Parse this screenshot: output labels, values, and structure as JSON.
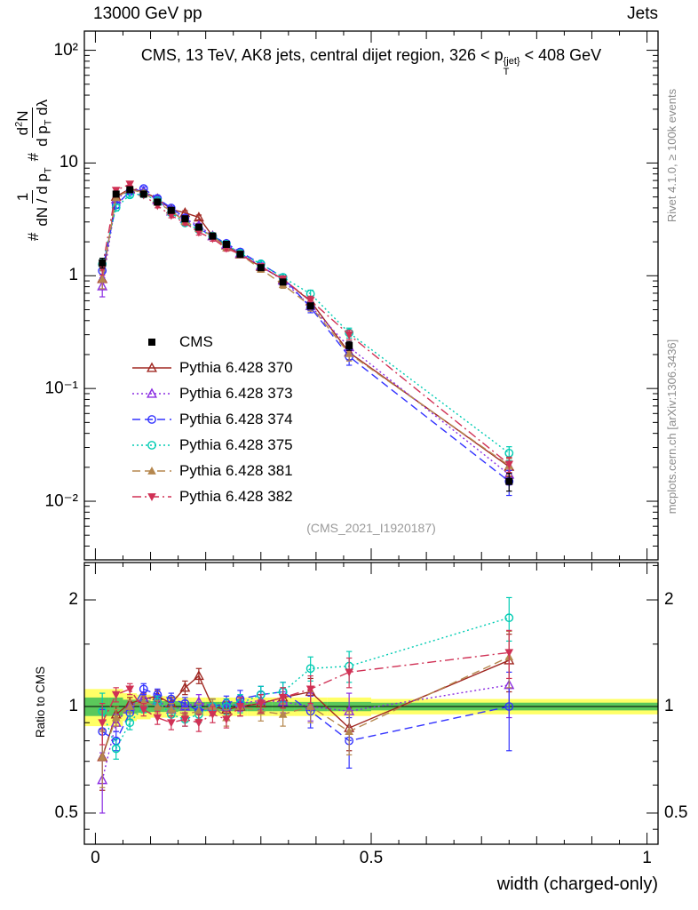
{
  "header": {
    "left": "13000 GeV pp",
    "right": "Jets"
  },
  "title": {
    "pre": "CMS, 13 TeV, AK8 jets, central dijet region, 326 < p",
    "sup": "{jet}",
    "sub": "T",
    "post": " < 408 GeV"
  },
  "side_notes": {
    "top_right": "Rivet 4.1.0, ≥ 100k events",
    "bottom_right": "mcplots.cern.ch [arXiv:1306.3436]"
  },
  "watermark": "(CMS_2021_I1920187)",
  "axes": {
    "x_label": "width (charged-only)",
    "ratio_label": "Ratio to CMS",
    "x_ticks": [
      {
        "v": 0,
        "label": "0"
      },
      {
        "v": 0.5,
        "label": "0.5"
      },
      {
        "v": 1,
        "label": "1"
      }
    ],
    "y_main_ticks": [
      {
        "v": 100,
        "label": "10²"
      },
      {
        "v": 10,
        "label": "10"
      },
      {
        "v": 1,
        "label": "1"
      },
      {
        "v": 0.1,
        "label": "10⁻¹"
      },
      {
        "v": 0.01,
        "label": "10⁻²"
      }
    ],
    "y_ratio_ticks": [
      {
        "v": 2,
        "label": "2"
      },
      {
        "v": 1,
        "label": "1"
      },
      {
        "v": 0.5,
        "label": "0.5"
      }
    ],
    "y_main_label": {
      "hash1": "#",
      "f1num": "1",
      "f1den_a": "dN / d p",
      "f1den_sub": "T",
      "hash2": "#",
      "f2num_a": "d",
      "f2num_sup": "2",
      "f2num_b": "N",
      "f2den_a": "d p",
      "f2den_sub": "T",
      "f2den_b": " dλ"
    }
  },
  "chart_data": {
    "type": "line",
    "title": "CMS, 13 TeV, AK8 jets, central dijet region, 326 < p_T^{jet} < 408 GeV",
    "xlabel": "width (charged-only)",
    "ylabel": "# 1/(dN/dp_T) # d2N/(dp_T dlambda)",
    "ylabel_ratio": "Ratio to CMS",
    "x_range": [
      -0.02,
      1.02
    ],
    "y_main_log_range": [
      -2.52,
      2.17
    ],
    "y_ratio_log_range": [
      -0.389,
      0.4065
    ],
    "x": [
      0.0125,
      0.0375,
      0.0625,
      0.0875,
      0.1125,
      0.1375,
      0.1625,
      0.1875,
      0.2125,
      0.2375,
      0.2625,
      0.3,
      0.34,
      0.39,
      0.46,
      0.75
    ],
    "series": [
      {
        "label": "CMS",
        "color": "#000000",
        "marker": "square-filled",
        "line": "none",
        "values": [
          1.3,
          5.3,
          5.8,
          5.3,
          4.5,
          3.8,
          3.2,
          2.7,
          2.25,
          1.9,
          1.55,
          1.18,
          0.88,
          0.54,
          0.24,
          0.015
        ],
        "rel_err": [
          0.1,
          0.04,
          0.03,
          0.03,
          0.03,
          0.03,
          0.03,
          0.03,
          0.035,
          0.04,
          0.04,
          0.045,
          0.05,
          0.06,
          0.09,
          0.18
        ]
      },
      {
        "label": "Pythia 6.428 370",
        "color": "#a02822",
        "marker": "triangle-open",
        "line": "solid",
        "ratio": [
          0.72,
          0.95,
          1.02,
          1.05,
          1.07,
          1.02,
          1.13,
          1.22,
          1.0,
          0.98,
          1.0,
          1.02,
          1.06,
          1.1,
          0.87,
          1.35
        ],
        "ratio_err": [
          0.14,
          0.05,
          0.04,
          0.04,
          0.04,
          0.04,
          0.05,
          0.06,
          0.05,
          0.05,
          0.06,
          0.06,
          0.07,
          0.1,
          0.12,
          0.25
        ]
      },
      {
        "label": "Pythia 6.428 373",
        "color": "#8a2be2",
        "marker": "triangle-open",
        "line": "dotted",
        "ratio": [
          0.62,
          0.9,
          1.0,
          1.06,
          1.04,
          0.98,
          1.0,
          1.03,
          1.0,
          1.0,
          1.02,
          1.04,
          1.03,
          1.0,
          0.97,
          1.15
        ],
        "ratio_err": [
          0.12,
          0.05,
          0.04,
          0.04,
          0.04,
          0.04,
          0.04,
          0.05,
          0.05,
          0.05,
          0.05,
          0.06,
          0.07,
          0.09,
          0.12,
          0.22
        ]
      },
      {
        "label": "Pythia 6.428 374",
        "color": "#3333ff",
        "marker": "circle-open",
        "line": "dashed",
        "ratio": [
          0.85,
          0.8,
          0.96,
          1.12,
          1.08,
          1.05,
          1.02,
          0.97,
          1.0,
          1.02,
          1.05,
          1.08,
          1.1,
          0.97,
          0.8,
          1.0
        ],
        "ratio_err": [
          0.13,
          0.05,
          0.04,
          0.04,
          0.04,
          0.04,
          0.04,
          0.05,
          0.05,
          0.05,
          0.06,
          0.06,
          0.07,
          0.1,
          0.13,
          0.25
        ]
      },
      {
        "label": "Pythia 6.428 375",
        "color": "#00ccb3",
        "marker": "circle-open",
        "line": "dotted",
        "ratio": [
          0.97,
          0.76,
          0.9,
          1.0,
          1.03,
          0.95,
          0.92,
          0.95,
          1.0,
          1.0,
          1.02,
          1.08,
          1.1,
          1.28,
          1.3,
          1.78
        ],
        "ratio_err": [
          0.12,
          0.05,
          0.04,
          0.04,
          0.04,
          0.04,
          0.04,
          0.05,
          0.05,
          0.05,
          0.06,
          0.06,
          0.07,
          0.1,
          0.13,
          0.25
        ]
      },
      {
        "label": "Pythia 6.428 381",
        "color": "#b5874e",
        "marker": "triangle-filled",
        "line": "dashed",
        "ratio": [
          0.72,
          0.93,
          1.0,
          1.03,
          1.0,
          0.98,
          0.95,
          0.97,
          1.0,
          0.93,
          1.0,
          0.97,
          0.95,
          1.0,
          0.85,
          1.38
        ],
        "ratio_err": [
          0.13,
          0.05,
          0.04,
          0.04,
          0.04,
          0.04,
          0.04,
          0.05,
          0.05,
          0.05,
          0.06,
          0.06,
          0.07,
          0.1,
          0.12,
          0.25
        ]
      },
      {
        "label": "Pythia 6.428 382",
        "color": "#d03155",
        "marker": "triangle-down-filled",
        "line": "dashdot",
        "ratio": [
          0.9,
          1.08,
          1.12,
          0.98,
          0.93,
          0.9,
          0.92,
          0.9,
          0.95,
          0.92,
          1.0,
          1.02,
          1.06,
          1.12,
          1.25,
          1.42
        ],
        "ratio_err": [
          0.12,
          0.05,
          0.04,
          0.04,
          0.04,
          0.04,
          0.04,
          0.05,
          0.05,
          0.05,
          0.06,
          0.06,
          0.07,
          0.1,
          0.12,
          0.22
        ]
      }
    ],
    "band": {
      "outer_color": "#ffff66",
      "inner_color": "#5bc85b",
      "edges": [
        -0.02,
        0.025,
        0.05,
        0.075,
        0.1,
        0.125,
        0.15,
        0.175,
        0.2,
        0.225,
        0.25,
        0.275,
        0.32,
        0.36,
        0.42,
        0.5,
        1.02
      ],
      "outer": [
        0.12,
        0.12,
        0.09,
        0.08,
        0.07,
        0.07,
        0.06,
        0.06,
        0.06,
        0.06,
        0.06,
        0.06,
        0.06,
        0.06,
        0.06,
        0.05
      ],
      "inner": [
        0.06,
        0.06,
        0.045,
        0.04,
        0.035,
        0.035,
        0.03,
        0.03,
        0.03,
        0.03,
        0.03,
        0.03,
        0.03,
        0.03,
        0.03,
        0.025
      ]
    },
    "legend_position": "middle-left",
    "grid": false
  }
}
